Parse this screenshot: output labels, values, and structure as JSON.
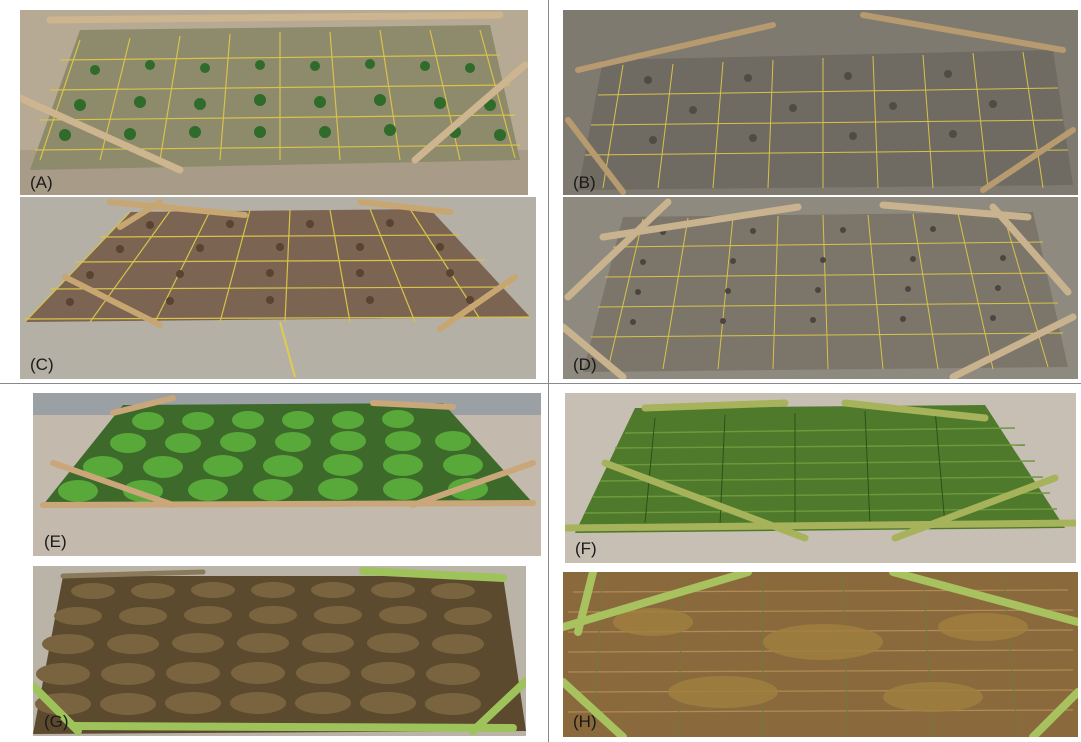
{
  "panels": [
    {
      "id": "A",
      "label": "(A)"
    },
    {
      "id": "B",
      "label": "(B)"
    },
    {
      "id": "C",
      "label": "(C)"
    },
    {
      "id": "D",
      "label": "(D)"
    },
    {
      "id": "E",
      "label": "(E)"
    },
    {
      "id": "F",
      "label": "(F)"
    },
    {
      "id": "G",
      "label": "(G)"
    },
    {
      "id": "H",
      "label": "(H)"
    }
  ],
  "colors": {
    "sand": "#b9ad9a",
    "wet_sand": "#8c8478",
    "bamboo": "#c9a77a",
    "string": "#d8c24a",
    "young_green": "#2f6b2a",
    "lush_green": "#59a83a",
    "grass_green": "#4f7a2c",
    "brown_mass": "#6a5232",
    "dry_grass": "#8a6a3c"
  }
}
